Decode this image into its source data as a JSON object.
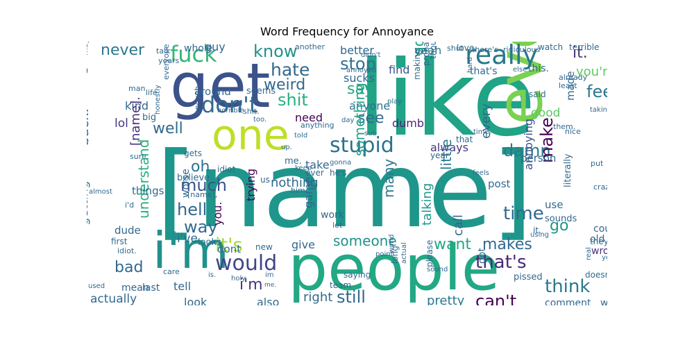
{
  "title": "Word Frequency for Annoyance",
  "words": [
    {
      "text": "like",
      "color": "#20a386"
    },
    {
      "text": "[name]",
      "color": "#1f968b"
    },
    {
      "text": "people",
      "color": "#22a884"
    },
    {
      "text": "get",
      "color": "#3b528b"
    },
    {
      "text": "one",
      "color": "#bddf26"
    },
    {
      "text": "even",
      "color": "#7ad151"
    },
    {
      "text": "fucking",
      "color": "#29af7f"
    },
    {
      "text": "i'm",
      "color": "#21918c"
    },
    {
      "text": "really",
      "color": "#2a788e"
    },
    {
      "text": "fuck",
      "color": "#35b779"
    },
    {
      "text": "don't",
      "color": "#31688e"
    },
    {
      "text": "stupid",
      "color": "#2c728e"
    },
    {
      "text": "it's",
      "color": "#a0da39"
    },
    {
      "text": "would",
      "color": "#414487"
    },
    {
      "text": "that's",
      "color": "#482878"
    },
    {
      "text": "think",
      "color": "#2a788e"
    },
    {
      "text": "hate",
      "color": "#31688e"
    },
    {
      "text": "know",
      "color": "#21918c"
    },
    {
      "text": "never",
      "color": "#2a788e"
    },
    {
      "text": "shit",
      "color": "#29af7f"
    },
    {
      "text": "weird",
      "color": "#31688e"
    },
    {
      "text": "stop",
      "color": "#2c728e"
    },
    {
      "text": "say",
      "color": "#22a884"
    },
    {
      "text": "see",
      "color": "#31688e"
    },
    {
      "text": "feel",
      "color": "#2a788e"
    },
    {
      "text": "it.",
      "color": "#46337e"
    },
    {
      "text": "you're",
      "color": "#5ec962"
    },
    {
      "text": "damn",
      "color": "#2a788e"
    },
    {
      "text": "time",
      "color": "#31688e"
    },
    {
      "text": "make",
      "color": "#440154"
    },
    {
      "text": "go",
      "color": "#1f968b"
    },
    {
      "text": "much",
      "color": "#3b528b"
    },
    {
      "text": "hell",
      "color": "#31688e"
    },
    {
      "text": "way",
      "color": "#31688e"
    },
    {
      "text": "oh",
      "color": "#2c728e"
    },
    {
      "text": "well",
      "color": "#31688e"
    },
    {
      "text": "thing",
      "color": "#482878"
    },
    {
      "text": "kind",
      "color": "#31688e"
    },
    {
      "text": "lol",
      "color": "#443983"
    },
    {
      "text": "back.",
      "color": "#31688e"
    },
    {
      "text": "[name].",
      "color": "#472d7b"
    },
    {
      "text": "want",
      "color": "#22a884"
    },
    {
      "text": "makes",
      "color": "#31688e"
    },
    {
      "text": "someone",
      "color": "#21918c"
    },
    {
      "text": "still",
      "color": "#31688e"
    },
    {
      "text": "can't",
      "color": "#440154"
    },
    {
      "text": "i'm",
      "color": "#46337e"
    },
    {
      "text": "bad",
      "color": "#31688e"
    },
    {
      "text": "understand",
      "color": "#29af7f"
    },
    {
      "text": "actually",
      "color": "#31688e"
    },
    {
      "text": "going",
      "color": "#20a386"
    },
    {
      "text": "sucks",
      "color": "#31688e"
    },
    {
      "text": "anyone",
      "color": "#2c728e"
    },
    {
      "text": "find",
      "color": "#3b528b"
    },
    {
      "text": "yeah",
      "color": "#2a788e"
    },
    {
      "text": "better",
      "color": "#31688e"
    },
    {
      "text": "dumb",
      "color": "#482878"
    },
    {
      "text": "need",
      "color": "#440154"
    },
    {
      "text": "always",
      "color": "#46337e"
    },
    {
      "text": "every",
      "color": "#31688e"
    },
    {
      "text": "good",
      "color": "#5ec962"
    },
    {
      "text": "annoying",
      "color": "#3b528b"
    },
    {
      "text": "little",
      "color": "#2a788e"
    },
    {
      "text": "talking",
      "color": "#1f968b"
    },
    {
      "text": "call",
      "color": "#31688e"
    },
    {
      "text": "pretty",
      "color": "#2a788e"
    },
    {
      "text": "nothing",
      "color": "#31688e"
    },
    {
      "text": "give",
      "color": "#31688e"
    },
    {
      "text": "many",
      "color": "#2a788e"
    },
    {
      "text": "take",
      "color": "#31688e"
    },
    {
      "text": "trying",
      "color": "#440154"
    },
    {
      "text": "you.",
      "color": "#440154"
    },
    {
      "text": "game",
      "color": "#31688e"
    },
    {
      "text": "right",
      "color": "#31688e"
    },
    {
      "text": "also",
      "color": "#31688e"
    },
    {
      "text": "look",
      "color": "#31688e"
    },
    {
      "text": "tell",
      "color": "#31688e"
    },
    {
      "text": "getting",
      "color": "#2a788e"
    },
    {
      "text": "i've",
      "color": "#31688e"
    },
    {
      "text": "dont",
      "color": "#31688e"
    },
    {
      "text": "something",
      "color": "#20a386"
    },
    {
      "text": "work",
      "color": "#31688e"
    },
    {
      "text": "use",
      "color": "#31688e"
    },
    {
      "text": "comment",
      "color": "#31688e"
    },
    {
      "text": "worst",
      "color": "#31688e"
    },
    {
      "text": "made",
      "color": "#31688e"
    },
    {
      "text": "could",
      "color": "#31688e"
    },
    {
      "text": "old",
      "color": "#31688e"
    },
    {
      "text": "wrong",
      "color": "#46337e"
    },
    {
      "text": "post",
      "color": "#31688e"
    },
    {
      "text": "person",
      "color": "#31688e"
    },
    {
      "text": "guy",
      "color": "#31688e"
    },
    {
      "text": "around",
      "color": "#31688e"
    },
    {
      "text": "seems",
      "color": "#31688e"
    },
    {
      "text": "whole",
      "color": "#31688e"
    },
    {
      "text": "big",
      "color": "#31688e"
    },
    {
      "text": "things",
      "color": "#31688e"
    },
    {
      "text": "believe",
      "color": "#31688e"
    },
    {
      "text": "dude",
      "color": "#31688e"
    },
    {
      "text": "first",
      "color": "#31688e"
    },
    {
      "text": "new",
      "color": "#31688e"
    },
    {
      "text": "mean",
      "color": "#31688e"
    },
    {
      "text": "last",
      "color": "#31688e"
    },
    {
      "text": "me.",
      "color": "#31688e"
    },
    {
      "text": "literally",
      "color": "#31688e"
    },
    {
      "text": "sounds",
      "color": "#31688e"
    },
    {
      "text": "they're",
      "color": "#31688e"
    },
    {
      "text": "pissed",
      "color": "#31688e"
    },
    {
      "text": "doesn't",
      "color": "#31688e"
    },
    {
      "text": "saying",
      "color": "#31688e"
    },
    {
      "text": "long",
      "color": "#31688e"
    },
    {
      "text": "please",
      "color": "#31688e"
    },
    {
      "text": "got",
      "color": "#31688e"
    },
    {
      "text": "gets",
      "color": "#31688e"
    },
    {
      "text": "idiot",
      "color": "#31688e"
    },
    {
      "text": "love",
      "color": "#31688e"
    },
    {
      "text": "this.",
      "color": "#31688e"
    },
    {
      "text": "that's",
      "color": "#31688e"
    },
    {
      "text": "said",
      "color": "#31688e"
    },
    {
      "text": "ever",
      "color": "#31688e"
    },
    {
      "text": "he's",
      "color": "#31688e"
    },
    {
      "text": "us",
      "color": "#31688e"
    },
    {
      "text": "[name],",
      "color": "#31688e"
    },
    {
      "text": "looks",
      "color": "#31688e"
    },
    {
      "text": "worse",
      "color": "#31688e"
    },
    {
      "text": "thought",
      "color": "#31688e"
    },
    {
      "text": "making",
      "color": "#31688e"
    },
    {
      "text": "probably",
      "color": "#31688e"
    },
    {
      "text": "team",
      "color": "#31688e"
    },
    {
      "text": "watch",
      "color": "#31688e"
    },
    {
      "text": "terrible",
      "color": "#31688e"
    },
    {
      "text": "already",
      "color": "#31688e"
    },
    {
      "text": "least",
      "color": "#31688e"
    },
    {
      "text": "there's",
      "color": "#31688e"
    },
    {
      "text": "ridiculous",
      "color": "#31688e"
    },
    {
      "text": "shut",
      "color": "#31688e"
    },
    {
      "text": "another",
      "color": "#31688e"
    },
    {
      "text": "didn't",
      "color": "#31688e"
    },
    {
      "text": "annoyed",
      "color": "#31688e"
    },
    {
      "text": "else",
      "color": "#31688e"
    },
    {
      "text": "talk",
      "color": "#31688e"
    },
    {
      "text": "maybe",
      "color": "#31688e"
    },
    {
      "text": "years",
      "color": "#31688e"
    },
    {
      "text": "man",
      "color": "#31688e"
    },
    {
      "text": "life",
      "color": "#31688e"
    },
    {
      "text": "everyone",
      "color": "#31688e"
    },
    {
      "text": "horrible",
      "color": "#31688e"
    },
    {
      "text": "too.",
      "color": "#31688e"
    },
    {
      "text": "shit.",
      "color": "#31688e"
    },
    {
      "text": "enough",
      "color": "#31688e"
    },
    {
      "text": "honestly",
      "color": "#31688e"
    },
    {
      "text": "sure",
      "color": "#31688e"
    },
    {
      "text": "anything",
      "color": "#31688e"
    },
    {
      "text": "up.",
      "color": "#31688e"
    },
    {
      "text": "told",
      "color": "#31688e"
    },
    {
      "text": "keep",
      "color": "#31688e"
    },
    {
      "text": "gonna",
      "color": "#31688e"
    },
    {
      "text": "year",
      "color": "#31688e"
    },
    {
      "text": "him.",
      "color": "#31688e"
    },
    {
      "text": "let",
      "color": "#31688e"
    },
    {
      "text": "play",
      "color": "#31688e"
    },
    {
      "text": "day",
      "color": "#31688e"
    },
    {
      "text": "sub",
      "color": "#31688e"
    },
    {
      "text": "that",
      "color": "#31688e"
    },
    {
      "text": "time.",
      "color": "#31688e"
    },
    {
      "text": "feels",
      "color": "#31688e"
    },
    {
      "text": "put",
      "color": "#31688e"
    },
    {
      "text": "crazy",
      "color": "#31688e"
    },
    {
      "text": "nice",
      "color": "#31688e"
    },
    {
      "text": "them.",
      "color": "#31688e"
    },
    {
      "text": "taking",
      "color": "#31688e"
    },
    {
      "text": "it.",
      "color": "#31688e"
    },
    {
      "text": "using",
      "color": "#31688e"
    },
    {
      "text": "yeah,",
      "color": "#31688e"
    },
    {
      "text": "real",
      "color": "#31688e"
    },
    {
      "text": "point",
      "color": "#31688e"
    },
    {
      "text": "world",
      "color": "#31688e"
    },
    {
      "text": "sound",
      "color": "#31688e"
    },
    {
      "text": "actual",
      "color": "#31688e"
    },
    {
      "text": "im",
      "color": "#31688e"
    },
    {
      "text": "holy",
      "color": "#31688e"
    },
    {
      "text": "is.",
      "color": "#31688e"
    },
    {
      "text": "used",
      "color": "#31688e"
    },
    {
      "text": "me.",
      "color": "#31688e"
    },
    {
      "text": "care",
      "color": "#31688e"
    },
    {
      "text": "idiot.",
      "color": "#31688e"
    },
    {
      "text": "i'd",
      "color": "#31688e"
    },
    {
      "text": "almost",
      "color": "#31688e"
    },
    {
      "text": "hard",
      "color": "#31688e"
    }
  ]
}
